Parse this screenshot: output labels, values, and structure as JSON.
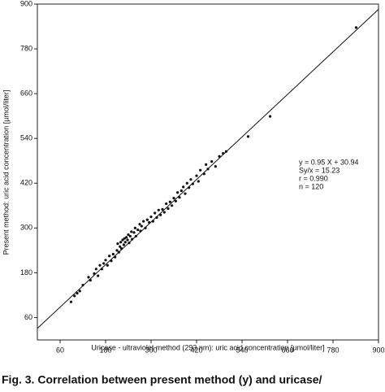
{
  "chart_data": {
    "type": "scatter",
    "x_label": "Uricase - ultraviolet method (293 nm): uric acid concentration [µmol/liter]",
    "y_label": "Present method: uric acid concentration [µmol/liter]",
    "caption": "Fig. 3. Correlation between present method (y) and uricase/",
    "annotations": [
      "y = 0.95 X + 30.94",
      "Sy/x = 15.23",
      "r = 0.990",
      "n = 120"
    ],
    "regression": {
      "slope": 0.95,
      "intercept": 30.94
    },
    "xlim": [
      0,
      900
    ],
    "ylim": [
      0,
      900
    ],
    "xticks": [
      60,
      180,
      300,
      420,
      540,
      660,
      780,
      900
    ],
    "yticks": [
      60,
      180,
      300,
      420,
      540,
      660,
      780,
      900
    ],
    "color": "#111111",
    "x": [
      89,
      98,
      120,
      112,
      105,
      135,
      140,
      150,
      155,
      160,
      165,
      170,
      175,
      180,
      185,
      190,
      195,
      200,
      205,
      210,
      212,
      215,
      218,
      220,
      222,
      225,
      228,
      230,
      232,
      235,
      238,
      240,
      242,
      245,
      248,
      250,
      255,
      258,
      260,
      265,
      270,
      272,
      275,
      280,
      285,
      290,
      295,
      300,
      305,
      310,
      315,
      320,
      325,
      330,
      335,
      340,
      345,
      350,
      355,
      360,
      365,
      370,
      375,
      380,
      385,
      390,
      395,
      400,
      405,
      410,
      420,
      425,
      430,
      440,
      445,
      450,
      460,
      470,
      480,
      490,
      498,
      556,
      614,
      841
    ],
    "y": [
      102,
      118,
      147,
      131,
      125,
      168,
      160,
      178,
      190,
      172,
      200,
      190,
      205,
      214,
      200,
      225,
      212,
      230,
      222,
      240,
      258,
      235,
      250,
      262,
      245,
      268,
      255,
      272,
      262,
      275,
      268,
      282,
      260,
      278,
      290,
      270,
      288,
      300,
      278,
      295,
      310,
      292,
      305,
      318,
      300,
      322,
      315,
      330,
      318,
      340,
      328,
      348,
      335,
      350,
      342,
      365,
      352,
      370,
      360,
      380,
      372,
      395,
      382,
      400,
      410,
      392,
      420,
      408,
      430,
      418,
      440,
      425,
      455,
      445,
      470,
      458,
      478,
      465,
      492,
      500,
      505,
      545,
      599,
      837
    ]
  }
}
